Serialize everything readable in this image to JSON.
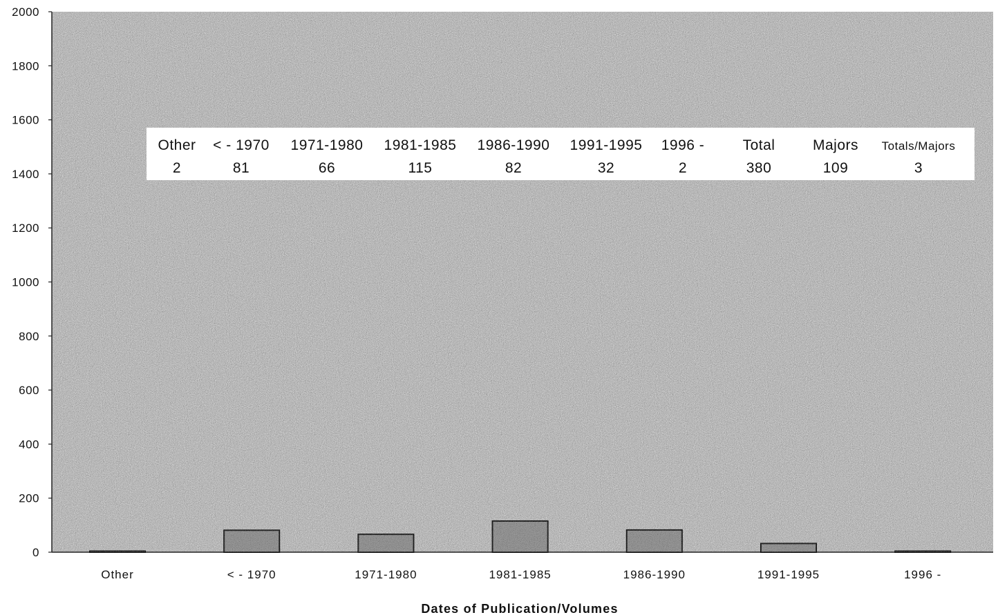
{
  "chart_data": {
    "type": "bar",
    "title": "",
    "xlabel": "Dates of Publication/Volumes",
    "ylabel": "",
    "ylim": [
      0,
      2000
    ],
    "yticks": [
      "0",
      "200",
      "400",
      "600",
      "800",
      "1000",
      "1200",
      "1400",
      "1600",
      "1800",
      "2000"
    ],
    "categories": [
      "Other",
      "< - 1970",
      "1971-1980",
      "1981-1985",
      "1986-1990",
      "1991-1995",
      "1996 -"
    ],
    "values": [
      2,
      81,
      66,
      115,
      82,
      32,
      2
    ],
    "grid": false,
    "background": "stippled gray",
    "bar_color": "#8a8a8a",
    "bar_outline": "#111111",
    "data_table": {
      "headers": [
        "Other",
        "< - 1970",
        "1971-1980",
        "1981-1985",
        "1986-1990",
        "1991-1995",
        "1996 -",
        "Total",
        "Majors",
        "Totals/Majors"
      ],
      "values": [
        "2",
        "81",
        "66",
        "115",
        "82",
        "32",
        "2",
        "380",
        "109",
        "3"
      ]
    }
  }
}
